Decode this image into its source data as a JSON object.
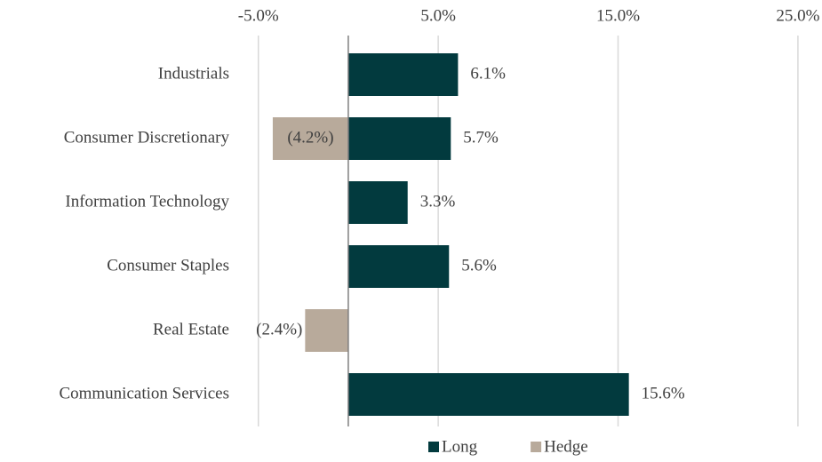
{
  "chart_data": {
    "type": "bar",
    "categories": [
      "Industrials",
      "Consumer Discretionary",
      "Information Technology",
      "Consumer Staples",
      "Real Estate",
      "Communication Services"
    ],
    "series": [
      {
        "name": "Long",
        "color": "#023a3e",
        "values": [
          6.1,
          5.7,
          3.3,
          5.6,
          null,
          15.6
        ],
        "value_labels": [
          "6.1%",
          "5.7%",
          "3.3%",
          "5.6%",
          null,
          "15.6%"
        ]
      },
      {
        "name": "Hedge",
        "color": "#b8aa9b",
        "values": [
          null,
          -4.2,
          null,
          null,
          -2.4,
          null
        ],
        "value_labels": [
          null,
          "(4.2%)",
          null,
          null,
          "(2.4%)",
          null
        ]
      }
    ],
    "xlim": [
      -6,
      25.4
    ],
    "xticks": [
      {
        "value": -5,
        "label": "-5.0%"
      },
      {
        "value": 5,
        "label": "5.0%"
      },
      {
        "value": 15,
        "label": "15.0%"
      },
      {
        "value": 25,
        "label": "25.0%"
      }
    ],
    "grid": true,
    "legend": "bottom",
    "hedge_label_color": "#ff0000"
  }
}
